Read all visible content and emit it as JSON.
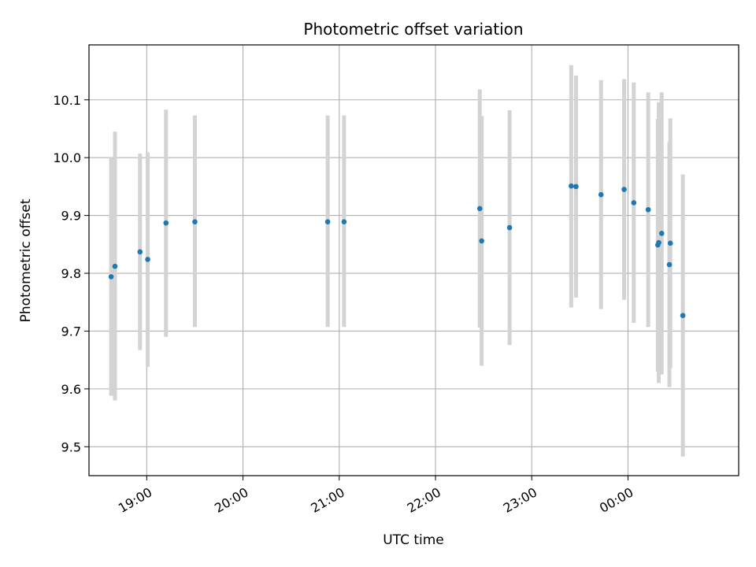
{
  "chart_data": {
    "type": "scatter",
    "title": "Photometric offset variation",
    "xlabel": "UTC time",
    "ylabel": "Photometric offset",
    "x_unit": "hours (UTC, >24 means after midnight)",
    "xlim": [
      18.4,
      25.15
    ],
    "ylim": [
      9.45,
      10.195
    ],
    "grid": true,
    "x_ticks": [
      {
        "value": 19,
        "label": "19:00"
      },
      {
        "value": 20,
        "label": "20:00"
      },
      {
        "value": 21,
        "label": "21:00"
      },
      {
        "value": 22,
        "label": "22:00"
      },
      {
        "value": 23,
        "label": "23:00"
      },
      {
        "value": 24,
        "label": "00:00"
      }
    ],
    "y_ticks": [
      {
        "value": 9.5,
        "label": "9.5"
      },
      {
        "value": 9.6,
        "label": "9.6"
      },
      {
        "value": 9.7,
        "label": "9.7"
      },
      {
        "value": 9.8,
        "label": "9.8"
      },
      {
        "value": 9.9,
        "label": "9.9"
      },
      {
        "value": 10.0,
        "label": "10.0"
      },
      {
        "value": 10.1,
        "label": "10.1"
      }
    ],
    "point_color": "#1f77b4",
    "errorbar_color": "#d3d3d3",
    "points": [
      {
        "x": 18.63,
        "y": 9.794,
        "err_low": 9.588,
        "err_high": 10.0
      },
      {
        "x": 18.67,
        "y": 9.812,
        "err_low": 9.58,
        "err_high": 10.045
      },
      {
        "x": 18.93,
        "y": 9.837,
        "err_low": 9.667,
        "err_high": 10.007
      },
      {
        "x": 19.01,
        "y": 9.824,
        "err_low": 9.638,
        "err_high": 10.009
      },
      {
        "x": 19.2,
        "y": 9.887,
        "err_low": 9.69,
        "err_high": 10.083
      },
      {
        "x": 19.5,
        "y": 9.889,
        "err_low": 9.707,
        "err_high": 10.073
      },
      {
        "x": 20.88,
        "y": 9.889,
        "err_low": 9.707,
        "err_high": 10.073
      },
      {
        "x": 21.05,
        "y": 9.889,
        "err_low": 9.707,
        "err_high": 10.073
      },
      {
        "x": 22.46,
        "y": 9.912,
        "err_low": 9.706,
        "err_high": 10.118
      },
      {
        "x": 22.48,
        "y": 9.856,
        "err_low": 9.64,
        "err_high": 10.072
      },
      {
        "x": 22.77,
        "y": 9.879,
        "err_low": 9.676,
        "err_high": 10.082
      },
      {
        "x": 23.41,
        "y": 9.951,
        "err_low": 9.741,
        "err_high": 10.16
      },
      {
        "x": 23.46,
        "y": 9.95,
        "err_low": 9.758,
        "err_high": 10.142
      },
      {
        "x": 23.72,
        "y": 9.936,
        "err_low": 9.738,
        "err_high": 10.134
      },
      {
        "x": 23.96,
        "y": 9.945,
        "err_low": 9.754,
        "err_high": 10.136
      },
      {
        "x": 24.06,
        "y": 9.922,
        "err_low": 9.714,
        "err_high": 10.13
      },
      {
        "x": 24.21,
        "y": 9.91,
        "err_low": 9.707,
        "err_high": 10.113
      },
      {
        "x": 24.31,
        "y": 9.849,
        "err_low": 9.63,
        "err_high": 10.067
      },
      {
        "x": 24.32,
        "y": 9.853,
        "err_low": 9.61,
        "err_high": 10.096
      },
      {
        "x": 24.35,
        "y": 9.869,
        "err_low": 9.625,
        "err_high": 10.113
      },
      {
        "x": 24.43,
        "y": 9.815,
        "err_low": 9.603,
        "err_high": 10.027
      },
      {
        "x": 24.44,
        "y": 9.852,
        "err_low": 9.636,
        "err_high": 10.068
      },
      {
        "x": 24.57,
        "y": 9.727,
        "err_low": 9.483,
        "err_high": 9.971
      }
    ]
  }
}
